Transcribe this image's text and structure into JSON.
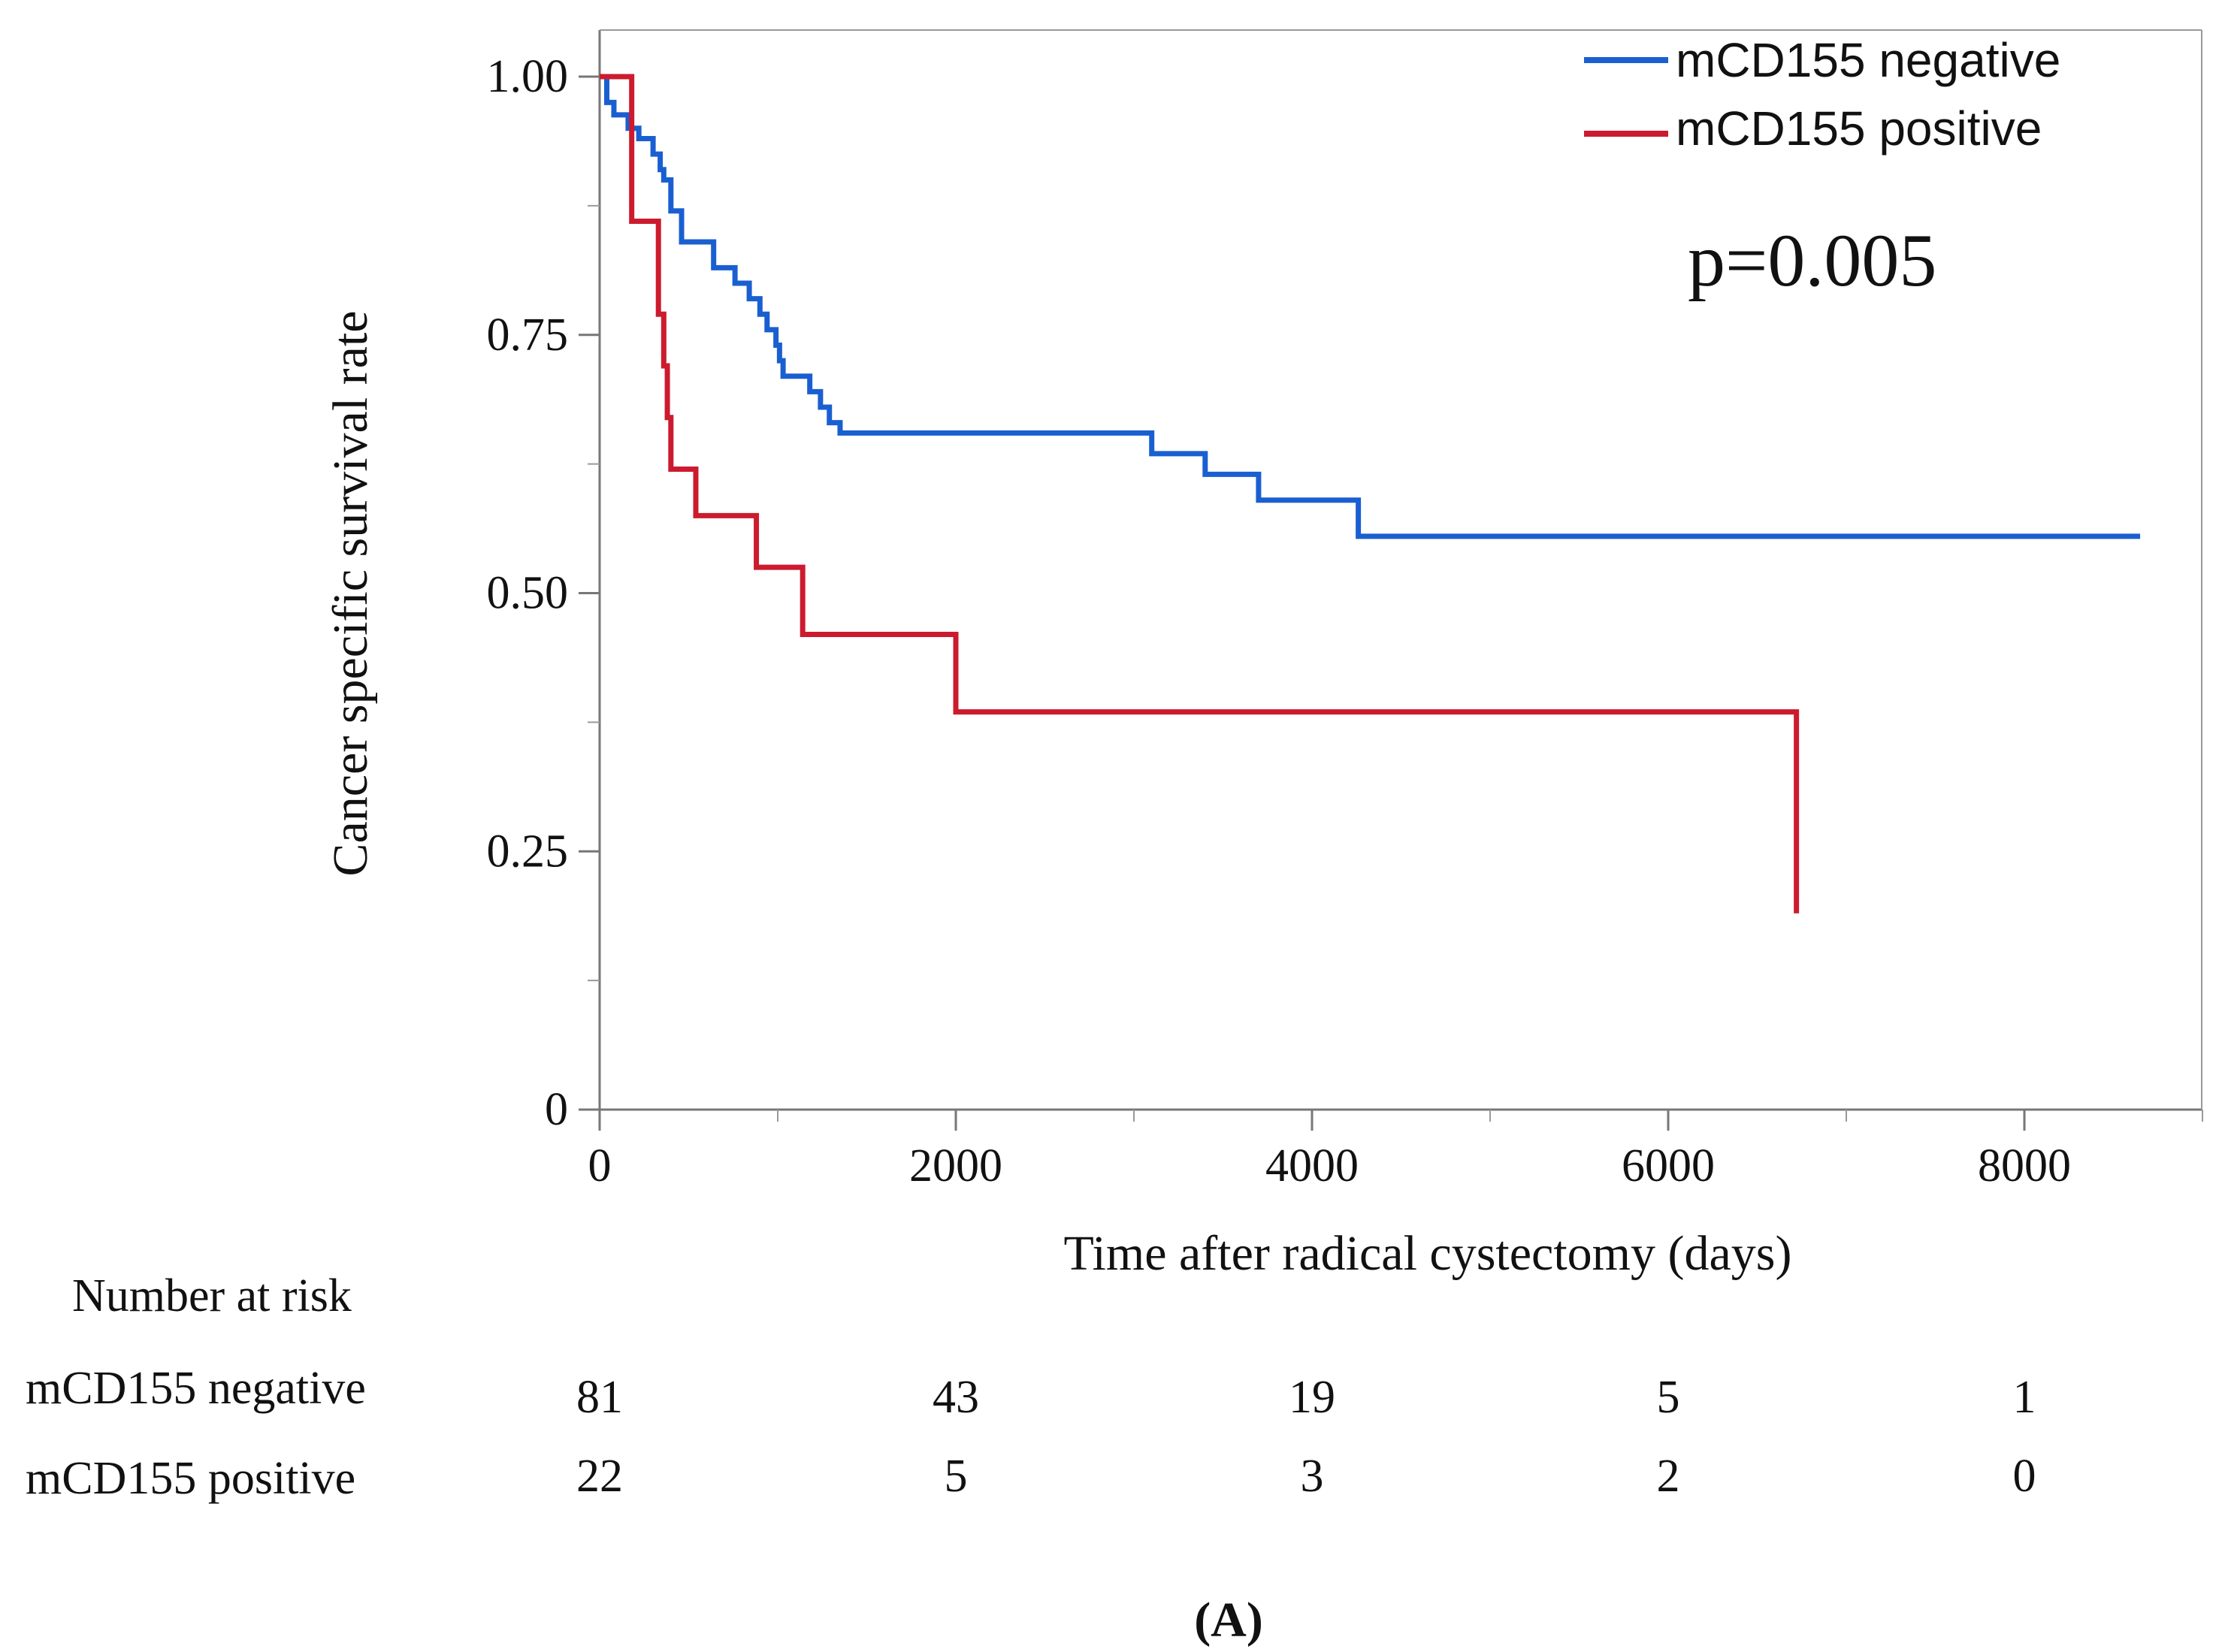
{
  "chart_data": {
    "type": "line",
    "subtype": "kaplan-meier step",
    "xlabel": "Time after radical cystectomy (days)",
    "ylabel": "Cancer specific survival rate",
    "xlim": [
      0,
      9000
    ],
    "ylim": [
      0,
      1.04
    ],
    "x_ticks": [
      0,
      2000,
      4000,
      6000,
      8000
    ],
    "x_minor_ticks": [
      1000,
      3000,
      5000,
      7000,
      9000
    ],
    "x_tick_labels": [
      "0",
      "2000",
      "4000",
      "6000",
      "8000"
    ],
    "y_ticks": [
      0,
      0.25,
      0.5,
      0.75,
      1.0
    ],
    "y_minor_ticks": [
      0.125,
      0.375,
      0.625,
      0.875
    ],
    "y_tick_labels": [
      "0",
      "0.25",
      "0.50",
      "0.75",
      "1.00"
    ],
    "grid": false,
    "legend_position": "top-right",
    "annotation": "p=0.005",
    "panel_label": "(A)",
    "series": [
      {
        "name": "mCD155 negative",
        "color": "#1a5fd1",
        "x": [
          0,
          40,
          80,
          160,
          220,
          300,
          340,
          360,
          400,
          460,
          560,
          640,
          760,
          840,
          900,
          940,
          990,
          1010,
          1030,
          1060,
          1180,
          1240,
          1290,
          1350,
          1420,
          3100,
          3300,
          3400,
          3700,
          4260,
          8650
        ],
        "y": [
          1.0,
          0.975,
          0.963,
          0.95,
          0.94,
          0.925,
          0.91,
          0.9,
          0.87,
          0.84,
          0.84,
          0.815,
          0.8,
          0.785,
          0.77,
          0.755,
          0.74,
          0.725,
          0.71,
          0.71,
          0.695,
          0.68,
          0.665,
          0.655,
          0.655,
          0.635,
          0.635,
          0.615,
          0.59,
          0.555,
          0.555
        ]
      },
      {
        "name": "mCD155 positive",
        "color": "#cc1b2e",
        "x": [
          0,
          140,
          180,
          270,
          330,
          360,
          380,
          400,
          540,
          640,
          880,
          1140,
          1400,
          2000,
          3000,
          6720,
          6720
        ],
        "y": [
          1.0,
          1.0,
          0.86,
          0.86,
          0.77,
          0.72,
          0.67,
          0.62,
          0.575,
          0.575,
          0.525,
          0.46,
          0.46,
          0.385,
          0.385,
          0.385,
          0.19
        ]
      }
    ],
    "risk_table": {
      "title": "Number at risk",
      "times": [
        0,
        2000,
        4000,
        6000,
        8000
      ],
      "rows": [
        {
          "label": "mCD155 negative",
          "values": [
            "81",
            "43",
            "19",
            "5",
            "1"
          ]
        },
        {
          "label": "mCD155 positive",
          "values": [
            "22",
            "5",
            "3",
            "2",
            "0"
          ]
        }
      ]
    }
  }
}
